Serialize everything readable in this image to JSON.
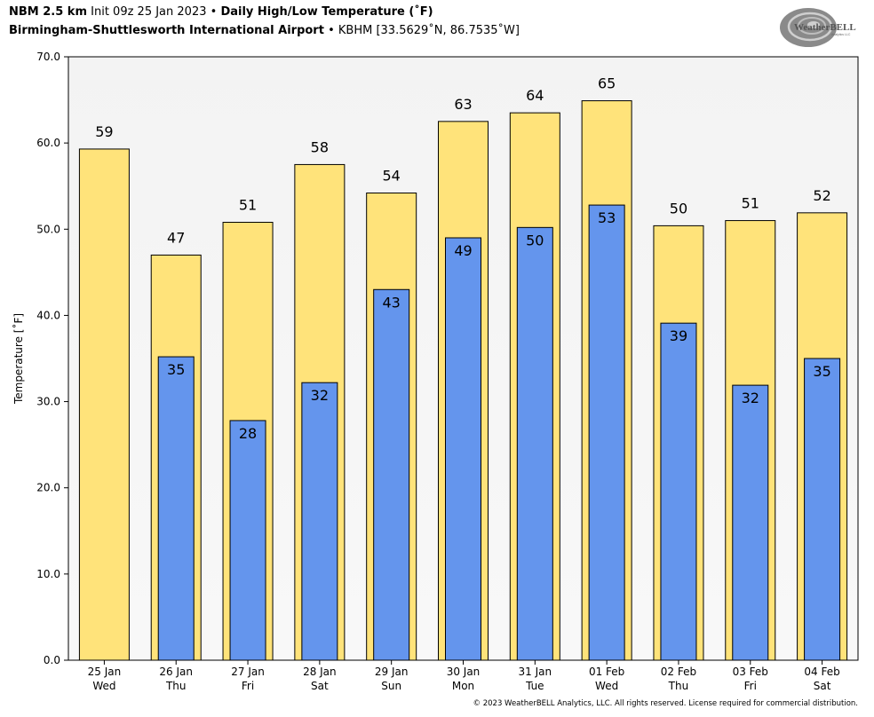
{
  "header": {
    "model": "NBM 2.5 km",
    "init": "Init 09z 25 Jan 2023",
    "sep": "•",
    "product": "Daily High/Low Temperature (˚F)",
    "station": "Birmingham-Shuttlesworth International Airport",
    "station_info": "KBHM [33.5629˚N, 86.7535˚W]"
  },
  "logo": {
    "text": "WeatherBELL",
    "sub": "Analytics LLC",
    "icon": "swirl-logo-icon"
  },
  "footer": {
    "copyright": "© 2023 WeatherBELL Analytics, LLC. All rights reserved. License required for commercial distribution."
  },
  "colors": {
    "high": "#FFE37A",
    "low": "#6495ED",
    "plot_bg_top": "#f3f3f3",
    "plot_bg_bottom": "#f8f8f8"
  },
  "chart_data": {
    "type": "bar",
    "ylabel": "Temperature [˚F]",
    "ylim": [
      0,
      70
    ],
    "yticks": [
      "0.0",
      "10.0",
      "20.0",
      "30.0",
      "40.0",
      "50.0",
      "60.0",
      "70.0"
    ],
    "categories": [
      {
        "date": "25 Jan",
        "day": "Wed"
      },
      {
        "date": "26 Jan",
        "day": "Thu"
      },
      {
        "date": "27 Jan",
        "day": "Fri"
      },
      {
        "date": "28 Jan",
        "day": "Sat"
      },
      {
        "date": "29 Jan",
        "day": "Sun"
      },
      {
        "date": "30 Jan",
        "day": "Mon"
      },
      {
        "date": "31 Jan",
        "day": "Tue"
      },
      {
        "date": "01 Feb",
        "day": "Wed"
      },
      {
        "date": "02 Feb",
        "day": "Thu"
      },
      {
        "date": "03 Feb",
        "day": "Fri"
      },
      {
        "date": "04 Feb",
        "day": "Sat"
      }
    ],
    "series": [
      {
        "key": "high",
        "values": [
          59.3,
          47.0,
          50.8,
          57.5,
          54.2,
          62.5,
          63.5,
          64.9,
          50.4,
          51.0,
          51.9
        ],
        "labels": [
          "59",
          "47",
          "51",
          "58",
          "54",
          "63",
          "64",
          "65",
          "50",
          "51",
          "52"
        ]
      },
      {
        "key": "low",
        "values": [
          null,
          35.2,
          27.8,
          32.2,
          43.0,
          49.0,
          50.2,
          52.8,
          39.1,
          31.9,
          35.0
        ],
        "labels": [
          "",
          "35",
          "28",
          "32",
          "43",
          "49",
          "50",
          "53",
          "39",
          "32",
          "35"
        ]
      }
    ]
  }
}
